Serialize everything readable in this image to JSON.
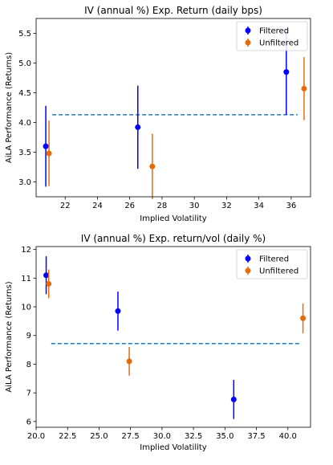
{
  "chart_data": [
    {
      "type": "scatter",
      "title": "IV (annual %) Exp. Return (daily bps)",
      "xlabel": "Implied Volatility",
      "ylabel": "AiLA Performance (Returns)",
      "xlim": [
        20.2,
        37.2
      ],
      "ylim": [
        2.75,
        5.75
      ],
      "xticks": [
        22,
        24,
        26,
        28,
        30,
        32,
        34,
        36
      ],
      "xtick_labels": [
        "22",
        "24",
        "26",
        "28",
        "30",
        "32",
        "34",
        "36"
      ],
      "yticks": [
        3.0,
        3.5,
        4.0,
        4.5,
        5.0,
        5.5
      ],
      "ytick_labels": [
        "3.0",
        "3.5",
        "4.0",
        "4.5",
        "5.0",
        "5.5"
      ],
      "grid": false,
      "legend_position": "top-right",
      "series": [
        {
          "name": "Filtered",
          "color": "#0000ff",
          "points": [
            {
              "x": 20.8,
              "y": 3.6,
              "err": 0.68
            },
            {
              "x": 26.5,
              "y": 3.92,
              "err": 0.7
            },
            {
              "x": 35.7,
              "y": 4.85,
              "err": 0.72
            }
          ]
        },
        {
          "name": "Unfiltered",
          "color": "#e36c0a",
          "points": [
            {
              "x": 21.0,
              "y": 3.48,
              "err": 0.55
            },
            {
              "x": 27.4,
              "y": 3.26,
              "err": 0.55
            },
            {
              "x": 36.8,
              "y": 4.57,
              "err": 0.53
            }
          ]
        }
      ],
      "reference_line": {
        "y": 4.13,
        "xrange": [
          21.2,
          36.4
        ],
        "color": "#1f77b4",
        "style": "dashed"
      }
    },
    {
      "type": "scatter",
      "title": "IV (annual %) Exp. return/vol (daily %)",
      "xlabel": "Implied Volatility",
      "ylabel": "AiLA Performance (Returns)",
      "xlim": [
        20.0,
        41.8
      ],
      "ylim": [
        5.8,
        12.1
      ],
      "xticks": [
        20.0,
        22.5,
        25.0,
        27.5,
        30.0,
        32.5,
        35.0,
        37.5,
        40.0
      ],
      "xtick_labels": [
        "20.0",
        "22.5",
        "25.0",
        "27.5",
        "30.0",
        "32.5",
        "35.0",
        "37.5",
        "40.0"
      ],
      "yticks": [
        6,
        7,
        8,
        9,
        10,
        11,
        12
      ],
      "ytick_labels": [
        "6",
        "7",
        "8",
        "9",
        "10",
        "11",
        "12"
      ],
      "grid": false,
      "legend_position": "top-right",
      "series": [
        {
          "name": "Filtered",
          "color": "#0000ff",
          "points": [
            {
              "x": 20.8,
              "y": 11.1,
              "err": 0.66
            },
            {
              "x": 26.5,
              "y": 9.85,
              "err": 0.68
            },
            {
              "x": 35.7,
              "y": 6.77,
              "err": 0.68
            }
          ]
        },
        {
          "name": "Unfiltered",
          "color": "#e36c0a",
          "points": [
            {
              "x": 21.0,
              "y": 10.8,
              "err": 0.5
            },
            {
              "x": 27.4,
              "y": 8.1,
              "err": 0.5
            },
            {
              "x": 41.2,
              "y": 9.6,
              "err": 0.52
            }
          ]
        }
      ],
      "reference_line": {
        "y": 8.72,
        "xrange": [
          21.2,
          41.0
        ],
        "color": "#1f77b4",
        "style": "dashed"
      }
    }
  ]
}
